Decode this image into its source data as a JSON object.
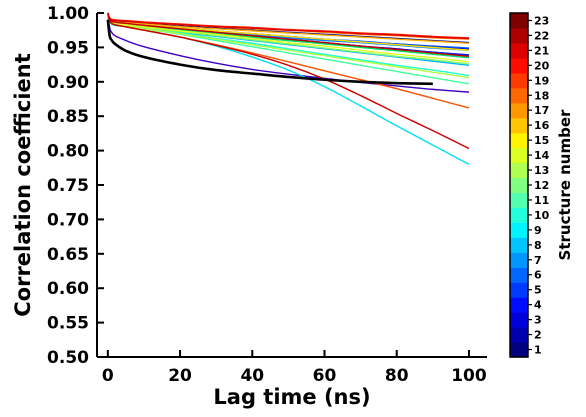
{
  "chart_data": {
    "type": "line",
    "xlabel": "Lag time (ns)",
    "ylabel": "Correlation coefficient",
    "xlim": [
      -3,
      105
    ],
    "ylim": [
      0.5,
      1.0
    ],
    "x_ticks": [
      0,
      20,
      40,
      60,
      80,
      100
    ],
    "x_tick_labels": [
      "0",
      "20",
      "40",
      "60",
      "80",
      "100"
    ],
    "y_ticks": [
      0.5,
      0.55,
      0.6,
      0.65,
      0.7,
      0.75,
      0.8,
      0.85,
      0.9,
      0.95,
      1.0
    ],
    "y_tick_labels": [
      "0.50",
      "0.55",
      "0.60",
      "0.65",
      "0.70",
      "0.75",
      "0.80",
      "0.85",
      "0.90",
      "0.95",
      "1.00"
    ],
    "grid": false,
    "colorbar": {
      "title": "Structure number",
      "labels": [
        "1",
        "2",
        "3",
        "4",
        "5",
        "6",
        "7",
        "8",
        "9",
        "10",
        "11",
        "12",
        "13",
        "14",
        "15",
        "16",
        "17",
        "18",
        "19",
        "20",
        "21",
        "22",
        "23"
      ],
      "colormap": "jet"
    },
    "series": [
      {
        "structure": 1,
        "color": "#000080",
        "x": [
          0,
          1,
          5,
          10,
          20,
          30,
          40,
          50,
          60,
          70,
          80,
          90,
          100
        ],
        "y": [
          1.0,
          0.99,
          0.987,
          0.985,
          0.981,
          0.978,
          0.975,
          0.972,
          0.969,
          0.966,
          0.963,
          0.96,
          0.957
        ]
      },
      {
        "structure": 2,
        "color": "#0000b3",
        "x": [
          0,
          1,
          5,
          10,
          20,
          30,
          40,
          50,
          60,
          70,
          80,
          90,
          100
        ],
        "y": [
          1.0,
          0.988,
          0.985,
          0.982,
          0.978,
          0.974,
          0.97,
          0.966,
          0.962,
          0.958,
          0.955,
          0.951,
          0.948
        ]
      },
      {
        "structure": 3,
        "color": "#0000e6",
        "x": [
          0,
          1,
          5,
          10,
          20,
          30,
          40,
          50,
          60,
          70,
          80,
          90,
          100
        ],
        "y": [
          1.0,
          0.987,
          0.984,
          0.981,
          0.976,
          0.971,
          0.966,
          0.962,
          0.957,
          0.952,
          0.948,
          0.943,
          0.939
        ]
      },
      {
        "structure": 4,
        "color": "#4000c0",
        "x": [
          0,
          1,
          5,
          10,
          20,
          30,
          40,
          50,
          60,
          70,
          80,
          90,
          100
        ],
        "y": [
          1.0,
          0.972,
          0.96,
          0.951,
          0.938,
          0.927,
          0.918,
          0.911,
          0.905,
          0.899,
          0.894,
          0.889,
          0.885
        ]
      },
      {
        "structure": 5,
        "color": "#0020ff",
        "x": [
          0,
          1,
          5,
          10,
          20,
          30,
          40,
          50,
          60,
          70,
          80,
          90,
          100
        ],
        "y": [
          1.0,
          0.986,
          0.983,
          0.98,
          0.975,
          0.97,
          0.965,
          0.96,
          0.956,
          0.951,
          0.947,
          0.943,
          0.939
        ]
      },
      {
        "structure": 6,
        "color": "#0050ff",
        "x": [
          0,
          1,
          5,
          10,
          20,
          30,
          40,
          50,
          60,
          70,
          80,
          90,
          100
        ],
        "y": [
          1.0,
          0.988,
          0.984,
          0.981,
          0.977,
          0.973,
          0.969,
          0.966,
          0.962,
          0.959,
          0.955,
          0.952,
          0.949
        ]
      },
      {
        "structure": 7,
        "color": "#0080ff",
        "x": [
          0,
          1,
          5,
          10,
          20,
          30,
          40,
          50,
          60,
          70,
          80,
          90,
          100
        ],
        "y": [
          1.0,
          0.987,
          0.983,
          0.98,
          0.976,
          0.972,
          0.968,
          0.964,
          0.96,
          0.957,
          0.953,
          0.949,
          0.946
        ]
      },
      {
        "structure": 8,
        "color": "#00b0ff",
        "x": [
          0,
          1,
          5,
          10,
          20,
          30,
          40,
          50,
          60,
          70,
          80,
          90,
          100
        ],
        "y": [
          1.0,
          0.985,
          0.982,
          0.978,
          0.972,
          0.966,
          0.96,
          0.954,
          0.948,
          0.942,
          0.936,
          0.93,
          0.924
        ]
      },
      {
        "structure": 9,
        "color": "#00e0f0",
        "x": [
          0,
          1,
          5,
          10,
          20,
          30,
          40,
          50,
          60,
          70,
          80,
          90,
          100
        ],
        "y": [
          1.0,
          0.984,
          0.98,
          0.975,
          0.965,
          0.952,
          0.936,
          0.917,
          0.893,
          0.865,
          0.836,
          0.808,
          0.78
        ]
      },
      {
        "structure": 10,
        "color": "#20ffd0",
        "x": [
          0,
          1,
          5,
          10,
          20,
          30,
          40,
          50,
          60,
          70,
          80,
          90,
          100
        ],
        "y": [
          1.0,
          0.986,
          0.982,
          0.978,
          0.971,
          0.963,
          0.956,
          0.948,
          0.94,
          0.932,
          0.924,
          0.917,
          0.909
        ]
      },
      {
        "structure": 11,
        "color": "#40ffa0",
        "x": [
          0,
          1,
          5,
          10,
          20,
          30,
          40,
          50,
          60,
          70,
          80,
          90,
          100
        ],
        "y": [
          1.0,
          0.985,
          0.981,
          0.977,
          0.969,
          0.96,
          0.951,
          0.942,
          0.933,
          0.924,
          0.915,
          0.906,
          0.897
        ]
      },
      {
        "structure": 12,
        "color": "#00e060",
        "x": [
          0,
          1,
          5,
          10,
          20,
          30,
          40,
          50,
          60,
          70,
          80,
          90,
          100
        ],
        "y": [
          1.0,
          0.987,
          0.983,
          0.98,
          0.975,
          0.97,
          0.965,
          0.96,
          0.955,
          0.95,
          0.945,
          0.94,
          0.935
        ]
      },
      {
        "structure": 13,
        "color": "#80ff60",
        "x": [
          0,
          1,
          5,
          10,
          20,
          30,
          40,
          50,
          60,
          70,
          80,
          90,
          100
        ],
        "y": [
          1.0,
          0.986,
          0.982,
          0.979,
          0.973,
          0.967,
          0.961,
          0.955,
          0.949,
          0.943,
          0.937,
          0.932,
          0.926
        ]
      },
      {
        "structure": 14,
        "color": "#b0ff40",
        "x": [
          0,
          1,
          5,
          10,
          20,
          30,
          40,
          50,
          60,
          70,
          80,
          90,
          100
        ],
        "y": [
          1.0,
          0.985,
          0.981,
          0.977,
          0.97,
          0.962,
          0.954,
          0.946,
          0.938,
          0.93,
          0.922,
          0.914,
          0.906
        ]
      },
      {
        "structure": 15,
        "color": "#e0ff20",
        "x": [
          0,
          1,
          5,
          10,
          20,
          30,
          40,
          50,
          60,
          70,
          80,
          90,
          100
        ],
        "y": [
          1.0,
          0.987,
          0.983,
          0.98,
          0.974,
          0.969,
          0.963,
          0.957,
          0.952,
          0.946,
          0.94,
          0.935,
          0.929
        ]
      },
      {
        "structure": 16,
        "color": "#ffe000",
        "x": [
          0,
          1,
          5,
          10,
          20,
          30,
          40,
          50,
          60,
          70,
          80,
          90,
          100
        ],
        "y": [
          1.0,
          0.988,
          0.985,
          0.982,
          0.978,
          0.974,
          0.97,
          0.966,
          0.962,
          0.958,
          0.954,
          0.95,
          0.946
        ]
      },
      {
        "structure": 17,
        "color": "#ffb000",
        "x": [
          0,
          1,
          5,
          10,
          20,
          30,
          40,
          50,
          60,
          70,
          80,
          90,
          100
        ],
        "y": [
          1.0,
          0.989,
          0.986,
          0.984,
          0.98,
          0.977,
          0.974,
          0.971,
          0.968,
          0.965,
          0.962,
          0.959,
          0.956
        ]
      },
      {
        "structure": 18,
        "color": "#ff8000",
        "x": [
          0,
          1,
          5,
          10,
          20,
          30,
          40,
          50,
          60,
          70,
          80,
          90,
          100
        ],
        "y": [
          1.0,
          0.99,
          0.988,
          0.986,
          0.983,
          0.98,
          0.977,
          0.975,
          0.972,
          0.969,
          0.967,
          0.964,
          0.962
        ]
      },
      {
        "structure": 19,
        "color": "#ff5000",
        "x": [
          0,
          1,
          5,
          10,
          20,
          30,
          40,
          50,
          60,
          70,
          80,
          90,
          100
        ],
        "y": [
          1.0,
          0.985,
          0.98,
          0.975,
          0.965,
          0.954,
          0.942,
          0.929,
          0.916,
          0.903,
          0.89,
          0.876,
          0.862
        ]
      },
      {
        "structure": 20,
        "color": "#ff2000",
        "x": [
          0,
          1,
          5,
          10,
          20,
          30,
          40,
          50,
          60,
          70,
          80,
          90,
          100
        ],
        "y": [
          1.0,
          0.991,
          0.989,
          0.987,
          0.984,
          0.981,
          0.979,
          0.976,
          0.974,
          0.971,
          0.969,
          0.966,
          0.964
        ]
      },
      {
        "structure": 21,
        "color": "#e00000",
        "x": [
          0,
          1,
          5,
          10,
          20,
          30,
          40,
          50,
          60,
          70,
          80,
          90,
          100
        ],
        "y": [
          1.0,
          0.99,
          0.988,
          0.986,
          0.983,
          0.98,
          0.978,
          0.975,
          0.973,
          0.97,
          0.968,
          0.965,
          0.963
        ]
      },
      {
        "structure": 22,
        "color": "#c00000",
        "x": [
          0,
          1,
          5,
          10,
          20,
          30,
          40,
          50,
          60,
          70,
          80,
          90,
          100
        ],
        "y": [
          1.0,
          0.988,
          0.985,
          0.982,
          0.977,
          0.972,
          0.967,
          0.962,
          0.957,
          0.952,
          0.947,
          0.942,
          0.937
        ]
      },
      {
        "structure": 23,
        "color": "#cc0000",
        "x": [
          0,
          1,
          5,
          10,
          20,
          30,
          40,
          50,
          60,
          70,
          80,
          90,
          100
        ],
        "y": [
          1.0,
          0.985,
          0.98,
          0.975,
          0.965,
          0.953,
          0.94,
          0.924,
          0.904,
          0.88,
          0.854,
          0.829,
          0.803
        ]
      },
      {
        "structure": 0,
        "color": "#000000",
        "x": [
          0,
          0.5,
          1,
          2,
          5,
          10,
          20,
          30,
          40,
          50,
          60,
          70,
          80,
          90
        ],
        "y": [
          0.99,
          0.967,
          0.961,
          0.955,
          0.945,
          0.936,
          0.925,
          0.917,
          0.912,
          0.907,
          0.903,
          0.9,
          0.898,
          0.897
        ]
      }
    ]
  }
}
